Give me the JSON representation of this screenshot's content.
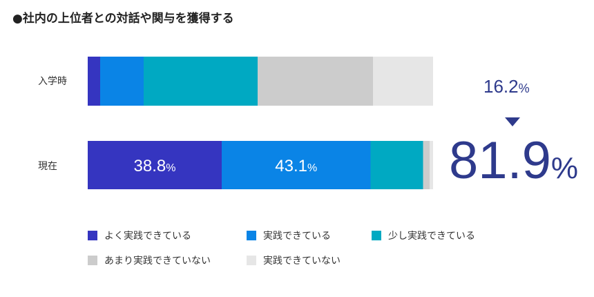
{
  "chart_data": {
    "type": "bar",
    "stacked": true,
    "orientation": "horizontal",
    "title": "●社内の上位者との対話や関与を獲得する",
    "categories": [
      "入学時",
      "現在"
    ],
    "series": [
      {
        "name": "よく実践できている",
        "color": "#3535c0",
        "values": [
          3.6,
          38.8
        ]
      },
      {
        "name": "実践できている",
        "color": "#0a84e6",
        "values": [
          12.6,
          43.1
        ]
      },
      {
        "name": "少し実践できている",
        "color": "#00a9c2",
        "values": [
          33.0,
          15.2
        ]
      },
      {
        "name": "あまり実践できていない",
        "color": "#cccccc",
        "values": [
          33.4,
          1.9
        ]
      },
      {
        "name": "実践できていない",
        "color": "#e6e6e6",
        "values": [
          17.4,
          1.0
        ]
      }
    ],
    "data_labels": {
      "row2_s0": "38.8",
      "row2_s1": "43.1",
      "unit": "%"
    },
    "annotation": {
      "before": "16.2",
      "after": "81.9",
      "unit": "%",
      "arrow": "down-triangle"
    },
    "xlim": [
      0,
      100
    ]
  }
}
